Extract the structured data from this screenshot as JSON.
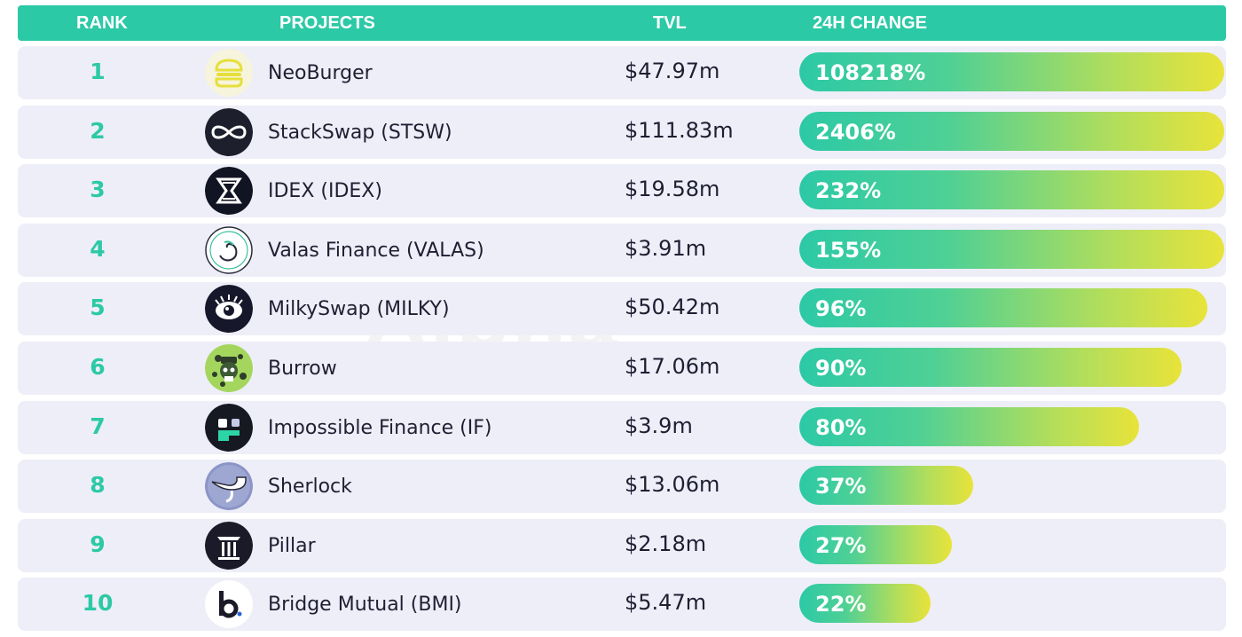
{
  "header": {
    "rank": "RANK",
    "projects": "PROJECTS",
    "tvl": "TVL",
    "change": "24H CHANGE"
  },
  "watermark": "Alpha",
  "rows": [
    {
      "rank": "1",
      "name": "NeoBurger",
      "tvl": "$47.97m",
      "change": "108218%",
      "icon": "neoburger-logo-icon"
    },
    {
      "rank": "2",
      "name": "StackSwap (STSW)",
      "tvl": "$111.83m",
      "change": "2406%",
      "icon": "stackswap-logo-icon"
    },
    {
      "rank": "3",
      "name": "IDEX (IDEX)",
      "tvl": "$19.58m",
      "change": "232%",
      "icon": "idex-logo-icon"
    },
    {
      "rank": "4",
      "name": "Valas Finance (VALAS)",
      "tvl": "$3.91m",
      "change": "155%",
      "icon": "valas-logo-icon"
    },
    {
      "rank": "5",
      "name": "MilkySwap (MILKY)",
      "tvl": "$50.42m",
      "change": "96%",
      "icon": "milkyswap-logo-icon"
    },
    {
      "rank": "6",
      "name": "Burrow",
      "tvl": "$17.06m",
      "change": "90%",
      "icon": "burrow-logo-icon"
    },
    {
      "rank": "7",
      "name": "Impossible Finance (IF)",
      "tvl": "$3.9m",
      "change": "80%",
      "icon": "impossible-finance-logo-icon"
    },
    {
      "rank": "8",
      "name": "Sherlock",
      "tvl": "$13.06m",
      "change": "37%",
      "icon": "sherlock-logo-icon"
    },
    {
      "rank": "9",
      "name": "Pillar",
      "tvl": "$2.18m",
      "change": "27%",
      "icon": "pillar-logo-icon"
    },
    {
      "rank": "10",
      "name": "Bridge Mutual (BMI)",
      "tvl": "$5.47m",
      "change": "22%",
      "icon": "bridge-mutual-logo-icon"
    }
  ],
  "chart_data": {
    "type": "table",
    "columns": [
      "RANK",
      "PROJECTS",
      "TVL",
      "24H CHANGE"
    ],
    "series": [
      {
        "name": "24H CHANGE",
        "categories": [
          "NeoBurger",
          "StackSwap (STSW)",
          "IDEX (IDEX)",
          "Valas Finance (VALAS)",
          "MilkySwap (MILKY)",
          "Burrow",
          "Impossible Finance (IF)",
          "Sherlock",
          "Pillar",
          "Bridge Mutual (BMI)"
        ],
        "values": [
          108218,
          2406,
          232,
          155,
          96,
          90,
          80,
          37,
          27,
          22
        ],
        "bar_fill_fraction": [
          1.0,
          1.0,
          1.0,
          1.0,
          0.96,
          0.9,
          0.8,
          0.41,
          0.36,
          0.31
        ]
      }
    ],
    "tvl_values_musd": [
      47.97,
      111.83,
      19.58,
      3.91,
      50.42,
      17.06,
      3.9,
      13.06,
      2.18,
      5.47
    ]
  },
  "colors": {
    "accent": "#2cc9a6",
    "bar_end": "#e8e33a",
    "row_bg": "#eeeef8",
    "text": "#1f1f33"
  }
}
